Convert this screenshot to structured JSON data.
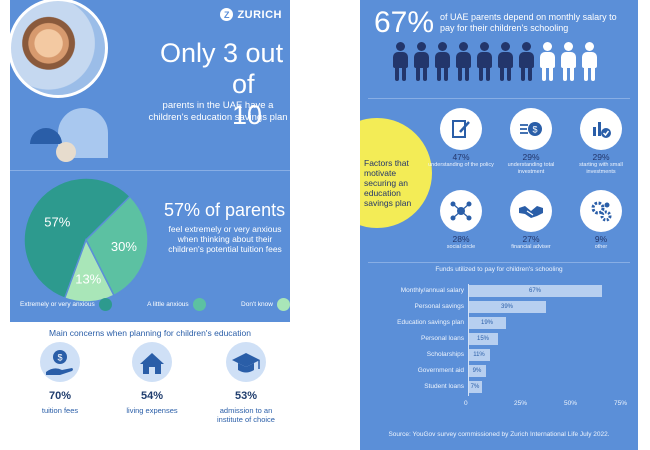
{
  "brand": {
    "name": "ZURICH",
    "icon": "zurich-logo-icon"
  },
  "left_panel": {
    "headline_line1": "Only 3 out",
    "headline_line2": "of 10",
    "subheadline": "parents in the UAE have a children's education savings plan",
    "anxiety": {
      "headline": "57% of parents",
      "text": "feel extremely or very anxious when thinking about their children's potential tuition fees",
      "legend": [
        {
          "label": "Extremely or very anxious",
          "color": "#2d9a8e"
        },
        {
          "label": "A little anxious",
          "color": "#5cc1a2"
        },
        {
          "label": "Don't know",
          "color": "#a9e6b8"
        }
      ]
    }
  },
  "chart_data": [
    {
      "type": "pie",
      "slices": [
        {
          "label": "Extremely or very anxious",
          "value": 57,
          "display": "57%",
          "color": "#2d9a8e"
        },
        {
          "label": "A little anxious",
          "value": 30,
          "display": "30%",
          "color": "#5cc1a2"
        },
        {
          "label": "Don't know",
          "value": 13,
          "display": "13%",
          "color": "#a9e6b8"
        }
      ]
    },
    {
      "type": "bar",
      "orientation": "horizontal",
      "title": "Funds utilized to pay for children's schooling",
      "categories": [
        "Monthly/annual salary",
        "Personal savings",
        "Education savings plan",
        "Personal loans",
        "Scholarships",
        "Government aid",
        "Student loans"
      ],
      "values": [
        67,
        39,
        19,
        15,
        11,
        9,
        7
      ],
      "value_labels": [
        "67%",
        "39%",
        "19%",
        "15%",
        "11%",
        "9%",
        "7%"
      ],
      "xlim": [
        0,
        75
      ],
      "xticks": [
        "0",
        "25%",
        "50%",
        "75%"
      ]
    }
  ],
  "concerns": {
    "title": "Main concerns when planning for children's education",
    "items": [
      {
        "pct": "70%",
        "label": "tuition fees",
        "icon": "dollar-hand-icon"
      },
      {
        "pct": "54%",
        "label": "living expenses",
        "icon": "house-icon"
      },
      {
        "pct": "53%",
        "label": "admission to an institute of choice",
        "icon": "graduation-cap-icon"
      }
    ]
  },
  "right_panel": {
    "headline_pct": "67%",
    "headline_text": "of UAE parents depend on monthly salary to pay for their children's schooling",
    "people": {
      "total": 10,
      "highlighted": 7,
      "dark_color": "#23366b",
      "light_color": "#ffffff"
    },
    "factors_title": "Factors that motivate securing an education savings plan",
    "factors": [
      {
        "pct": "47%",
        "label": "understanding of the policy",
        "icon": "document-pen-icon"
      },
      {
        "pct": "29%",
        "label": "understanding total investment",
        "icon": "coin-icon"
      },
      {
        "pct": "29%",
        "label": "starting with small investments",
        "icon": "bar-check-icon"
      },
      {
        "pct": "28%",
        "label": "social circle",
        "icon": "network-icon"
      },
      {
        "pct": "27%",
        "label": "financial adviser",
        "icon": "handshake-icon"
      },
      {
        "pct": "9%",
        "label": "other",
        "icon": "gears-icon"
      }
    ],
    "source": "Source: YouGov survey commissioned by Zurich International Life July 2022."
  }
}
